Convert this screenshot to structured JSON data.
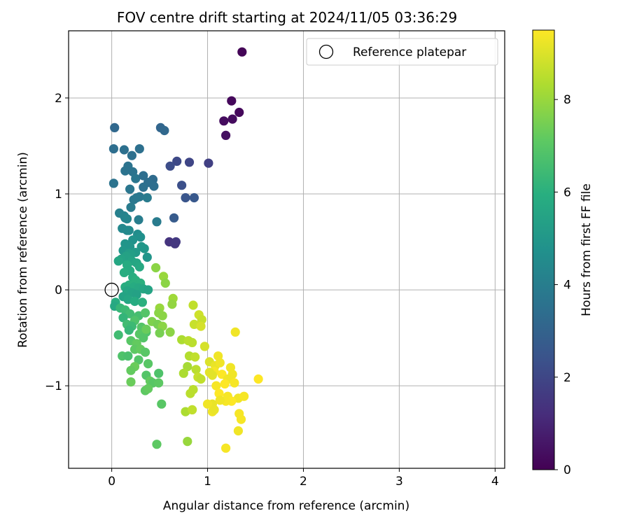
{
  "chart_data": {
    "type": "scatter",
    "title": "FOV centre drift starting at 2024/11/05 03:36:29",
    "xlabel": "Angular distance from reference (arcmin)",
    "ylabel": "Rotation from reference (arcmin)",
    "xlim": [
      -0.45,
      4.1
    ],
    "ylim": [
      -1.86,
      2.7
    ],
    "xticks": [
      0,
      1,
      2,
      3,
      4
    ],
    "xtick_labels": [
      "0",
      "1",
      "2",
      "3",
      "4"
    ],
    "yticks": [
      -1,
      0,
      1,
      2
    ],
    "ytick_labels": [
      "−1",
      "0",
      "1",
      "2"
    ],
    "grid": true,
    "colormap": "viridis",
    "colorbar": {
      "label": "Hours from first FF file",
      "range": [
        0,
        9.5
      ],
      "ticks": [
        0,
        2,
        4,
        6,
        8
      ],
      "tick_labels": [
        "0",
        "2",
        "4",
        "6",
        "8"
      ]
    },
    "legend": {
      "position": "upper right",
      "entries": [
        {
          "label": "Reference platepar",
          "marker": "open-circle",
          "x": 0,
          "y": 0
        }
      ]
    },
    "points": [
      [
        1.36,
        2.48,
        0.1
      ],
      [
        1.25,
        1.97,
        0.2
      ],
      [
        1.33,
        1.85,
        0.2
      ],
      [
        1.26,
        1.78,
        0.3
      ],
      [
        1.17,
        1.76,
        0.3
      ],
      [
        1.19,
        1.61,
        0.4
      ],
      [
        1.01,
        1.32,
        1.8
      ],
      [
        0.81,
        1.33,
        2.0
      ],
      [
        0.68,
        1.34,
        2.1
      ],
      [
        0.61,
        1.29,
        2.2
      ],
      [
        0.73,
        1.09,
        2.3
      ],
      [
        0.77,
        0.96,
        2.5
      ],
      [
        0.86,
        0.96,
        2.6
      ],
      [
        0.65,
        0.75,
        2.7
      ],
      [
        0.6,
        0.5,
        1.4
      ],
      [
        0.67,
        0.5,
        1.6
      ],
      [
        0.66,
        0.48,
        1.5
      ],
      [
        0.03,
        1.69,
        3.2
      ],
      [
        0.51,
        1.69,
        3.1
      ],
      [
        0.55,
        1.66,
        3.2
      ],
      [
        0.02,
        1.47,
        3.4
      ],
      [
        0.13,
        1.46,
        3.5
      ],
      [
        0.29,
        1.47,
        3.5
      ],
      [
        0.21,
        1.4,
        3.5
      ],
      [
        0.17,
        1.29,
        3.6
      ],
      [
        0.14,
        1.24,
        3.6
      ],
      [
        0.22,
        1.23,
        3.6
      ],
      [
        0.25,
        1.16,
        3.7
      ],
      [
        0.33,
        1.19,
        3.4
      ],
      [
        0.43,
        1.15,
        3.3
      ],
      [
        0.38,
        1.12,
        3.4
      ],
      [
        0.02,
        1.11,
        3.6
      ],
      [
        0.33,
        1.07,
        3.5
      ],
      [
        0.44,
        1.08,
        3.4
      ],
      [
        0.19,
        1.05,
        3.7
      ],
      [
        0.23,
        0.94,
        3.8
      ],
      [
        0.26,
        0.96,
        3.8
      ],
      [
        0.29,
        0.97,
        3.8
      ],
      [
        0.37,
        0.96,
        3.9
      ],
      [
        0.2,
        0.86,
        3.9
      ],
      [
        0.47,
        0.71,
        3.9
      ],
      [
        0.28,
        0.73,
        4.0
      ],
      [
        0.08,
        0.8,
        4.1
      ],
      [
        0.13,
        0.77,
        4.2
      ],
      [
        0.14,
        0.75,
        4.2
      ],
      [
        0.16,
        0.74,
        4.3
      ],
      [
        0.11,
        0.64,
        4.4
      ],
      [
        0.16,
        0.62,
        4.4
      ],
      [
        0.18,
        0.62,
        4.5
      ],
      [
        0.27,
        0.58,
        4.6
      ],
      [
        0.3,
        0.55,
        4.7
      ],
      [
        0.22,
        0.52,
        4.8
      ],
      [
        0.14,
        0.48,
        4.9
      ],
      [
        0.19,
        0.45,
        4.9
      ],
      [
        0.31,
        0.45,
        5.0
      ],
      [
        0.34,
        0.43,
        5.0
      ],
      [
        0.12,
        0.41,
        5.0
      ],
      [
        0.25,
        0.39,
        5.1
      ],
      [
        0.18,
        0.38,
        5.2
      ],
      [
        0.2,
        0.37,
        5.3
      ],
      [
        0.15,
        0.35,
        5.4
      ],
      [
        0.37,
        0.34,
        4.9
      ],
      [
        0.1,
        0.32,
        5.5
      ],
      [
        0.07,
        0.3,
        5.6
      ],
      [
        0.21,
        0.3,
        5.5
      ],
      [
        0.26,
        0.28,
        5.6
      ],
      [
        0.16,
        0.26,
        5.8
      ],
      [
        0.29,
        0.24,
        5.7
      ],
      [
        0.19,
        0.2,
        5.8
      ],
      [
        0.13,
        0.18,
        5.9
      ],
      [
        0.22,
        0.13,
        5.9
      ],
      [
        0.25,
        0.1,
        6.0
      ],
      [
        0.3,
        0.07,
        6.0
      ],
      [
        0.18,
        0.05,
        6.0
      ],
      [
        0.14,
        0.03,
        5.9
      ],
      [
        0.23,
        0.03,
        5.8
      ],
      [
        0.28,
        0.02,
        5.7
      ],
      [
        0.33,
        0.01,
        5.6
      ],
      [
        0.38,
        0.0,
        5.5
      ],
      [
        0.16,
        -0.01,
        5.6
      ],
      [
        0.21,
        -0.03,
        5.5
      ],
      [
        0.26,
        -0.05,
        5.4
      ],
      [
        0.12,
        -0.07,
        5.5
      ],
      [
        0.17,
        -0.1,
        5.6
      ],
      [
        0.24,
        -0.12,
        5.8
      ],
      [
        0.32,
        -0.13,
        6.0
      ],
      [
        0.04,
        -0.13,
        5.9
      ],
      [
        0.03,
        -0.17,
        5.7
      ],
      [
        0.09,
        -0.19,
        6.3
      ],
      [
        0.14,
        -0.21,
        6.4
      ],
      [
        0.19,
        -0.25,
        6.5
      ],
      [
        0.28,
        -0.27,
        6.6
      ],
      [
        0.35,
        -0.24,
        6.9
      ],
      [
        0.12,
        -0.29,
        6.2
      ],
      [
        0.24,
        -0.32,
        6.8
      ],
      [
        0.16,
        -0.36,
        6.5
      ],
      [
        0.21,
        -0.38,
        6.4
      ],
      [
        0.31,
        -0.39,
        6.9
      ],
      [
        0.18,
        -0.42,
        6.3
      ],
      [
        0.36,
        -0.44,
        6.8
      ],
      [
        0.29,
        -0.46,
        7.0
      ],
      [
        0.07,
        -0.47,
        6.5
      ],
      [
        0.33,
        -0.5,
        6.9
      ],
      [
        0.2,
        -0.53,
        7.0
      ],
      [
        0.26,
        -0.56,
        7.2
      ],
      [
        0.24,
        -0.62,
        7.1
      ],
      [
        0.3,
        -0.62,
        7.2
      ],
      [
        0.35,
        -0.65,
        7.0
      ],
      [
        0.11,
        -0.69,
        6.8
      ],
      [
        0.17,
        -0.69,
        6.7
      ],
      [
        0.28,
        -0.73,
        6.9
      ],
      [
        0.38,
        -0.77,
        7.0
      ],
      [
        0.24,
        -0.8,
        7.3
      ],
      [
        0.2,
        -0.84,
        7.2
      ],
      [
        0.36,
        -0.89,
        6.9
      ],
      [
        0.49,
        -0.87,
        6.8
      ],
      [
        0.4,
        -0.95,
        7.2
      ],
      [
        0.43,
        -0.97,
        7.0
      ],
      [
        0.49,
        -0.97,
        7.1
      ],
      [
        0.2,
        -0.96,
        7.3
      ],
      [
        0.35,
        -1.05,
        7.1
      ],
      [
        0.38,
        -1.03,
        7.2
      ],
      [
        0.52,
        -1.19,
        7.0
      ],
      [
        0.47,
        -1.61,
        7.1
      ],
      [
        0.79,
        -1.58,
        8.0
      ],
      [
        0.46,
        0.23,
        7.8
      ],
      [
        0.54,
        0.14,
        8.0
      ],
      [
        0.56,
        0.07,
        7.8
      ],
      [
        0.64,
        -0.09,
        8.1
      ],
      [
        0.63,
        -0.15,
        7.9
      ],
      [
        0.5,
        -0.19,
        8.0
      ],
      [
        0.49,
        -0.24,
        7.8
      ],
      [
        0.53,
        -0.27,
        7.8
      ],
      [
        0.42,
        -0.33,
        7.6
      ],
      [
        0.48,
        -0.36,
        7.5
      ],
      [
        0.53,
        -0.38,
        7.8
      ],
      [
        0.36,
        -0.41,
        7.3
      ],
      [
        0.5,
        -0.45,
        7.5
      ],
      [
        0.61,
        -0.44,
        7.8
      ],
      [
        0.73,
        -0.52,
        8.3
      ],
      [
        0.8,
        -0.53,
        8.5
      ],
      [
        0.84,
        -0.55,
        8.5
      ],
      [
        0.85,
        -0.16,
        8.6
      ],
      [
        0.91,
        -0.26,
        8.8
      ],
      [
        0.94,
        -0.31,
        8.7
      ],
      [
        0.86,
        -0.36,
        8.7
      ],
      [
        0.93,
        -0.38,
        8.9
      ],
      [
        0.81,
        -0.69,
        8.4
      ],
      [
        0.87,
        -0.7,
        8.6
      ],
      [
        0.79,
        -0.8,
        8.2
      ],
      [
        0.75,
        -0.87,
        8.3
      ],
      [
        0.88,
        -0.83,
        8.5
      ],
      [
        0.9,
        -0.91,
        8.7
      ],
      [
        0.93,
        -0.93,
        8.6
      ],
      [
        0.85,
        -1.04,
        8.5
      ],
      [
        0.82,
        -1.08,
        8.5
      ],
      [
        0.77,
        -1.27,
        8.3
      ],
      [
        0.84,
        -1.25,
        8.6
      ],
      [
        0.97,
        -0.59,
        8.9
      ],
      [
        1.02,
        -0.75,
        9.0
      ],
      [
        1.08,
        -0.79,
        9.2
      ],
      [
        1.11,
        -0.69,
        9.3
      ],
      [
        1.13,
        -0.76,
        9.3
      ],
      [
        1.07,
        -0.85,
        9.4
      ],
      [
        1.15,
        -0.88,
        9.5
      ],
      [
        1.02,
        -0.86,
        9.1
      ],
      [
        1.05,
        -0.89,
        9.1
      ],
      [
        1.24,
        -0.81,
        9.3
      ],
      [
        1.26,
        -0.88,
        9.3
      ],
      [
        1.21,
        -0.93,
        9.3
      ],
      [
        1.28,
        -0.97,
        9.4
      ],
      [
        1.18,
        -0.98,
        9.5
      ],
      [
        1.09,
        -1.0,
        9.4
      ],
      [
        1.12,
        -1.08,
        9.5
      ],
      [
        1.21,
        -1.11,
        9.4
      ],
      [
        1.32,
        -1.13,
        9.3
      ],
      [
        1.25,
        -1.16,
        9.5
      ],
      [
        1.19,
        -1.16,
        9.4
      ],
      [
        1.13,
        -1.15,
        9.3
      ],
      [
        1.05,
        -1.19,
        9.2
      ],
      [
        1.0,
        -1.19,
        9.3
      ],
      [
        1.38,
        -1.11,
        9.4
      ],
      [
        1.53,
        -0.93,
        9.5
      ],
      [
        1.29,
        -0.44,
        9.3
      ],
      [
        1.05,
        -1.27,
        9.3
      ],
      [
        1.07,
        -1.25,
        9.2
      ],
      [
        1.33,
        -1.29,
        9.4
      ],
      [
        1.35,
        -1.35,
        9.4
      ],
      [
        1.32,
        -1.47,
        9.3
      ],
      [
        1.19,
        -1.65,
        9.4
      ]
    ]
  }
}
